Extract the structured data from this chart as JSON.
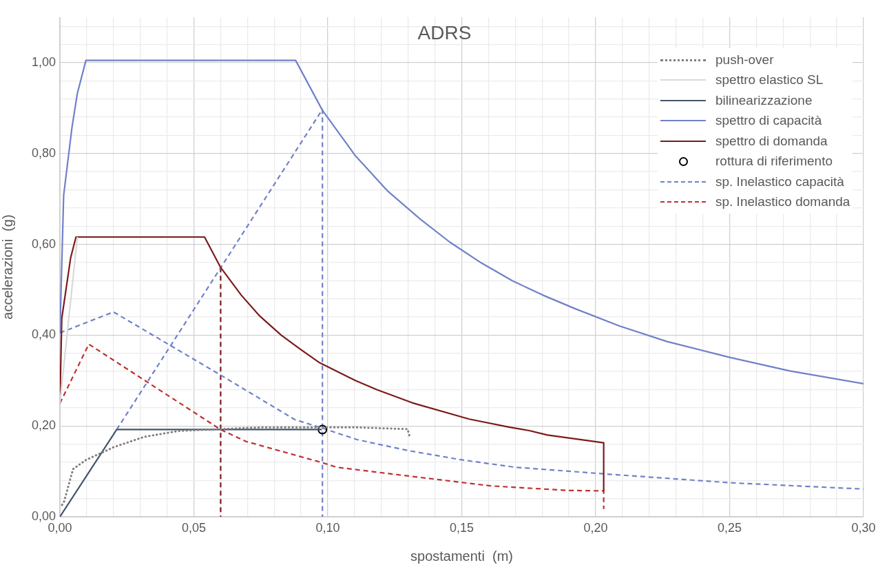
{
  "chart_data": {
    "type": "line",
    "title": "ADRS",
    "xlabel": "spostamenti  (m)",
    "ylabel": "accelerazioni  (g)",
    "xlim": [
      0,
      0.3
    ],
    "ylim": [
      0,
      1.1
    ],
    "xticks": [
      {
        "value": 0,
        "label": "0,00"
      },
      {
        "value": 0.01,
        "label": null
      },
      {
        "value": 0.02,
        "label": null
      },
      {
        "value": 0.03,
        "label": null
      },
      {
        "value": 0.04,
        "label": null
      },
      {
        "value": 0.05,
        "label": "0,05"
      },
      {
        "value": 0.06,
        "label": null
      },
      {
        "value": 0.07,
        "label": null
      },
      {
        "value": 0.08,
        "label": null
      },
      {
        "value": 0.09,
        "label": null
      },
      {
        "value": 0.1,
        "label": "0,10"
      },
      {
        "value": 0.11,
        "label": null
      },
      {
        "value": 0.12,
        "label": null
      },
      {
        "value": 0.13,
        "label": null
      },
      {
        "value": 0.14,
        "label": null
      },
      {
        "value": 0.15,
        "label": "0,15"
      },
      {
        "value": 0.16,
        "label": null
      },
      {
        "value": 0.17,
        "label": null
      },
      {
        "value": 0.18,
        "label": null
      },
      {
        "value": 0.19,
        "label": null
      },
      {
        "value": 0.2,
        "label": "0,20"
      },
      {
        "value": 0.21,
        "label": null
      },
      {
        "value": 0.22,
        "label": null
      },
      {
        "value": 0.23,
        "label": null
      },
      {
        "value": 0.24,
        "label": null
      },
      {
        "value": 0.25,
        "label": "0,25"
      },
      {
        "value": 0.26,
        "label": null
      },
      {
        "value": 0.27,
        "label": null
      },
      {
        "value": 0.28,
        "label": null
      },
      {
        "value": 0.29,
        "label": null
      },
      {
        "value": 0.3,
        "label": "0,30"
      }
    ],
    "yticks": [
      {
        "value": 0,
        "label": "0,00"
      },
      {
        "value": 0.04,
        "label": null
      },
      {
        "value": 0.08,
        "label": null
      },
      {
        "value": 0.12,
        "label": null
      },
      {
        "value": 0.16,
        "label": null
      },
      {
        "value": 0.2,
        "label": "0,20"
      },
      {
        "value": 0.24,
        "label": null
      },
      {
        "value": 0.28,
        "label": null
      },
      {
        "value": 0.32,
        "label": null
      },
      {
        "value": 0.36,
        "label": null
      },
      {
        "value": 0.4,
        "label": "0,40"
      },
      {
        "value": 0.44,
        "label": null
      },
      {
        "value": 0.48,
        "label": null
      },
      {
        "value": 0.52,
        "label": null
      },
      {
        "value": 0.56,
        "label": null
      },
      {
        "value": 0.6,
        "label": "0,60"
      },
      {
        "value": 0.64,
        "label": null
      },
      {
        "value": 0.68,
        "label": null
      },
      {
        "value": 0.72,
        "label": null
      },
      {
        "value": 0.76,
        "label": null
      },
      {
        "value": 0.8,
        "label": "0,80"
      },
      {
        "value": 0.84,
        "label": null
      },
      {
        "value": 0.88,
        "label": null
      },
      {
        "value": 0.92,
        "label": null
      },
      {
        "value": 0.96,
        "label": null
      },
      {
        "value": 1,
        "label": "1,00"
      },
      {
        "value": 1.04,
        "label": null
      },
      {
        "value": 1.08,
        "label": null
      }
    ],
    "grid": true,
    "legend": "top right",
    "marker": "none",
    "line_style": "solid",
    "series": [
      {
        "name": "push-over",
        "color": "#7f7f7f",
        "line_style": "dotted",
        "x": [
          0.0008,
          0.0016,
          0.0049,
          0.0097,
          0.02,
          0.0315,
          0.0443,
          0.0556,
          0.0757,
          0.1092,
          0.1298,
          0.1307
        ],
        "values": [
          0.026,
          0.034,
          0.105,
          0.125,
          0.153,
          0.176,
          0.189,
          0.192,
          0.197,
          0.197,
          0.193,
          0.173
        ]
      },
      {
        "name": "spettro elastico SL",
        "color": "#d9d9d9",
        "x": [
          0,
          0.0065
        ],
        "values": [
          0.25,
          0.616
        ]
      },
      {
        "name": "bilinearizzazione",
        "color": "#44546a",
        "x": [
          0,
          0.0212,
          0.0978
        ],
        "values": [
          0,
          0.192,
          0.192
        ]
      },
      {
        "name": "spettro di capacità",
        "color": "#7080c8",
        "x": [
          0,
          0.0014,
          0.0045,
          0.0065,
          0.0097,
          0.088,
          0.098,
          0.1103,
          0.1224,
          0.1344,
          0.1455,
          0.1573,
          0.1688,
          0.1803,
          0.1924,
          0.209,
          0.2266,
          0.25,
          0.2725,
          0.3
        ],
        "values": [
          0.405,
          0.708,
          0.857,
          0.932,
          1.005,
          1.005,
          0.895,
          0.795,
          0.717,
          0.656,
          0.605,
          0.559,
          0.52,
          0.488,
          0.458,
          0.42,
          0.386,
          0.351,
          0.321,
          0.293
        ]
      },
      {
        "name": "spettro di domanda",
        "color": "#7b1a1a",
        "x": [
          0,
          0.0007,
          0.004,
          0.006,
          0.054,
          0.06,
          0.0677,
          0.0746,
          0.0826,
          0.0895,
          0.097,
          0.1103,
          0.1183,
          0.1315,
          0.1528,
          0.168,
          0.175,
          0.182,
          0.203,
          0.203
        ],
        "values": [
          0.25,
          0.437,
          0.57,
          0.616,
          0.616,
          0.549,
          0.488,
          0.442,
          0.4,
          0.37,
          0.339,
          0.3,
          0.28,
          0.251,
          0.215,
          0.197,
          0.19,
          0.18,
          0.163,
          0.057
        ]
      },
      {
        "name": "rottura di riferimento",
        "type": "scatter",
        "marker": "circle",
        "color": "#000000",
        "x": [
          0.098
        ],
        "values": [
          0.192
        ]
      },
      {
        "name": "sp. Inelastico capacità",
        "color": "#7080c8",
        "line_style": "dashed",
        "x": [
          0,
          0.02,
          0.06,
          0.0877,
          0.097,
          0.1109,
          0.1298,
          0.1493,
          0.17,
          0.209,
          0.25,
          0.3
        ],
        "values": [
          0.405,
          0.451,
          0.312,
          0.214,
          0.197,
          0.17,
          0.146,
          0.126,
          0.109,
          0.092,
          0.075,
          0.061
        ]
      },
      {
        "name": "sp. Inelastico domanda",
        "color": "#c0302f",
        "line_style": "dashed",
        "x": [
          0,
          0.0108,
          0.06,
          0.0694,
          0.098,
          0.1034,
          0.1298,
          0.1608,
          0.1895,
          0.203,
          0.203
        ],
        "values": [
          0.25,
          0.38,
          0.192,
          0.166,
          0.119,
          0.109,
          0.09,
          0.068,
          0.058,
          0.057,
          0.017
        ]
      },
      {
        "color": "#7080c8",
        "line_style": "dashed",
        "x": [
          0.0212,
          0.098,
          0.098
        ],
        "values": [
          0.192,
          0.897,
          0
        ]
      },
      {
        "color": "#7b1a1a",
        "line_style": "dashed",
        "x": [
          0.06,
          0.06
        ],
        "values": [
          0.549,
          0
        ]
      }
    ]
  }
}
